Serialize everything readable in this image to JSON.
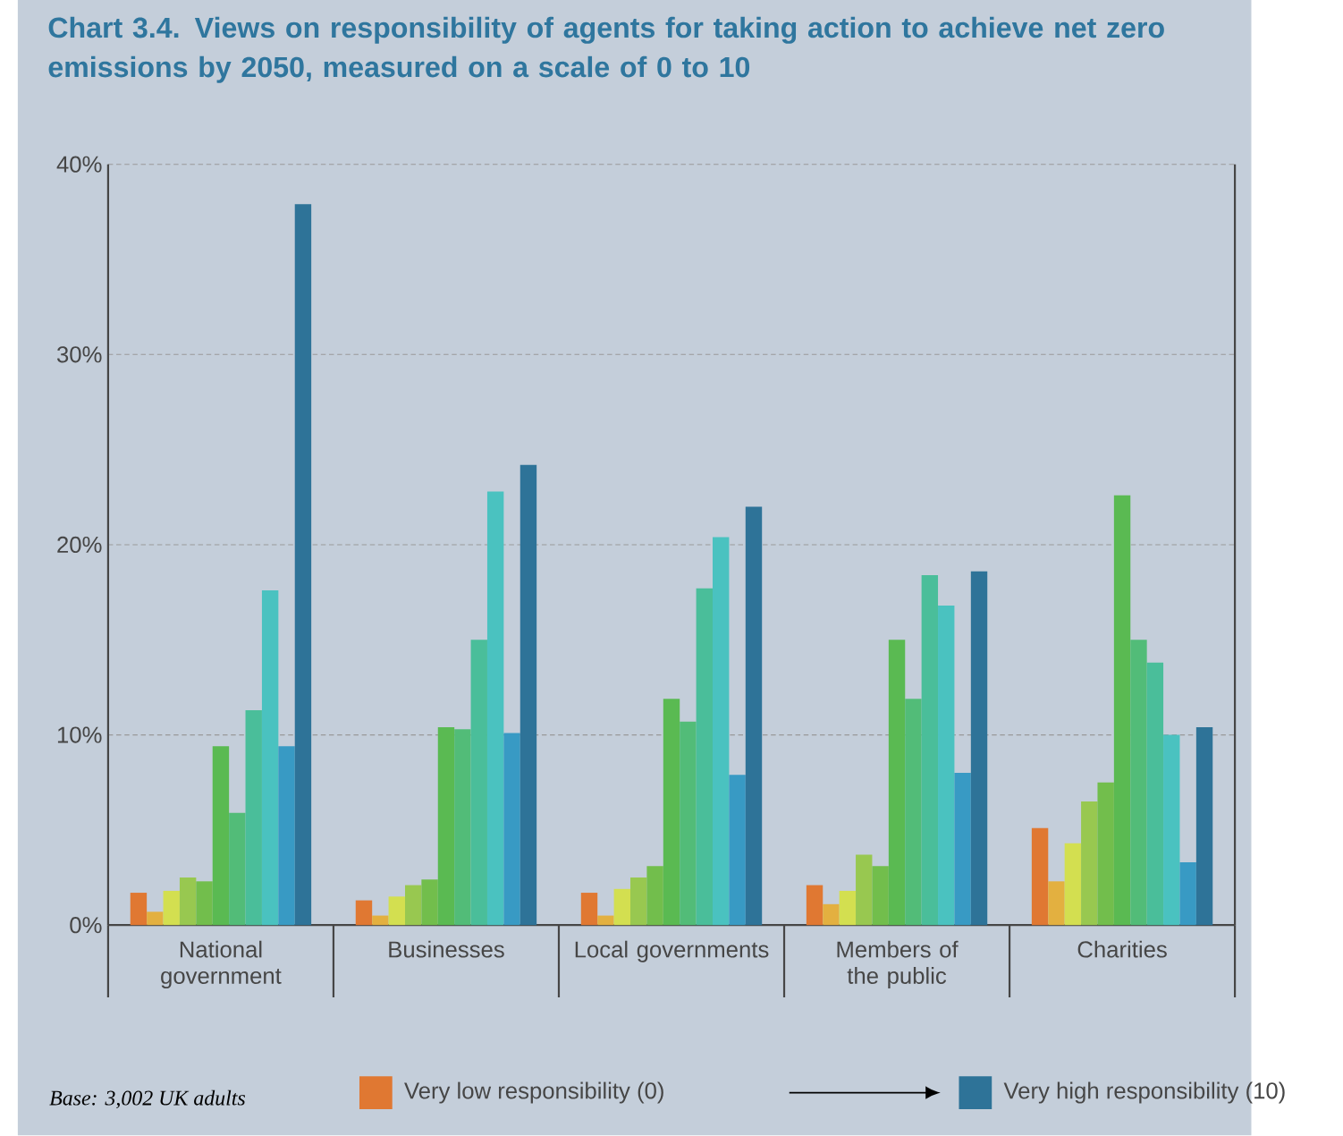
{
  "chart_data": {
    "type": "bar",
    "title": "Chart 3.4. Views on responsibility of agents for taking action to achieve net zero emissions by 2050, measured on a scale of 0 to 10",
    "categories": [
      "National government",
      "Businesses",
      "Local governments",
      "Members of the public",
      "Charities"
    ],
    "series": [
      {
        "name": "Very low responsibility (0)",
        "color": "#e07832",
        "values": [
          1.7,
          1.3,
          1.7,
          2.1,
          5.1
        ]
      },
      {
        "color": "#e3b040",
        "values": [
          0.7,
          0.5,
          0.5,
          1.1,
          2.3
        ]
      },
      {
        "color": "#d3df50",
        "values": [
          1.8,
          1.5,
          1.9,
          1.8,
          4.3
        ]
      },
      {
        "color": "#98c850",
        "values": [
          2.5,
          2.1,
          2.5,
          3.7,
          6.5
        ]
      },
      {
        "color": "#72be4c",
        "values": [
          2.3,
          2.4,
          3.1,
          3.1,
          7.5
        ]
      },
      {
        "color": "#5aba52",
        "values": [
          9.4,
          10.4,
          11.9,
          15.0,
          22.6
        ]
      },
      {
        "color": "#52bc78",
        "values": [
          5.9,
          10.3,
          10.7,
          11.9,
          15.0
        ]
      },
      {
        "color": "#4abe9a",
        "values": [
          11.3,
          15.0,
          17.7,
          18.4,
          13.8
        ]
      },
      {
        "color": "#4ac2c0",
        "values": [
          17.6,
          22.8,
          20.4,
          16.8,
          10.0
        ]
      },
      {
        "color": "#389ac4",
        "values": [
          9.4,
          10.1,
          7.9,
          8.0,
          3.3
        ]
      },
      {
        "name": "Very high responsibility (10)",
        "color": "#2e7398",
        "values": [
          37.9,
          24.2,
          22.0,
          18.6,
          10.4
        ]
      }
    ],
    "ylim": [
      0,
      40
    ],
    "yticks": [
      {
        "value": 0,
        "label": "0%"
      },
      {
        "value": 10,
        "label": "10%"
      },
      {
        "value": 20,
        "label": "20%"
      },
      {
        "value": 30,
        "label": "30%"
      },
      {
        "value": 40,
        "label": "40%"
      }
    ],
    "grid": "y",
    "legend": "bottom",
    "annotations": [
      "Base: 3,002 UK adults"
    ]
  }
}
